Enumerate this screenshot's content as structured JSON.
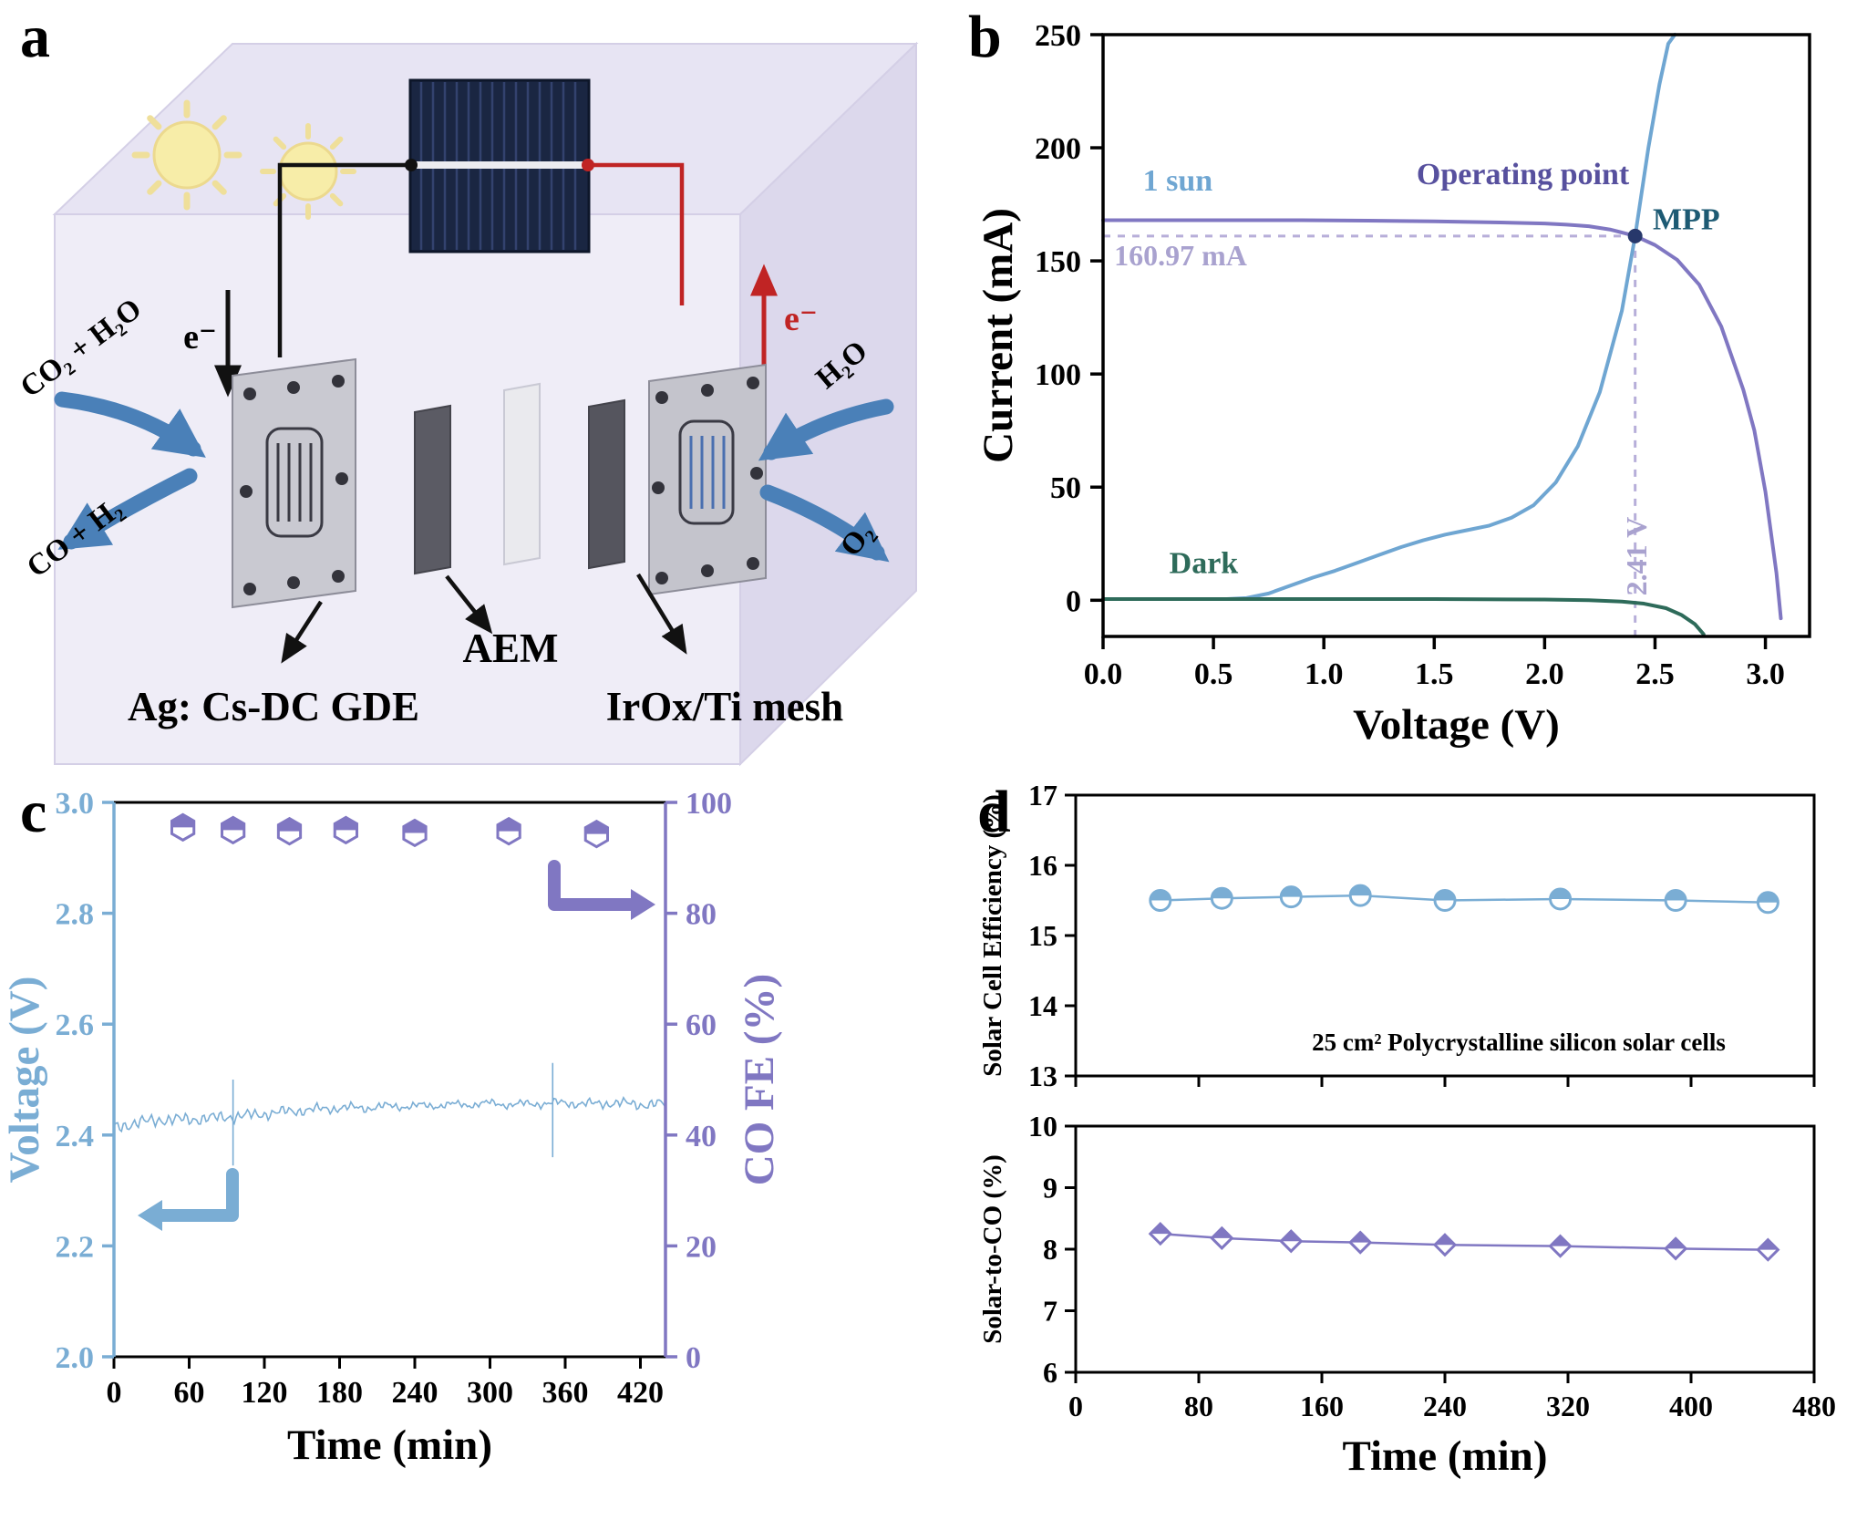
{
  "meta": {
    "panel_a_letter": "a",
    "panel_b_letter": "b",
    "panel_c_letter": "c",
    "panel_d_letter": "d"
  },
  "panel_a": {
    "labels": {
      "electron_left": "e⁻",
      "electron_right": "e⁻",
      "co2_in": "CO₂ + H₂O",
      "co_out": "CO + H₂",
      "h2o_in": "H₂O",
      "o2_out": "O₂",
      "aem": "AEM",
      "cathode": "Ag: Cs-DC GDE",
      "anode": "IrOx/Ti mesh"
    },
    "colors": {
      "wire_negative": "#111111",
      "wire_positive": "#c02424",
      "flow_arrow": "#4a80b8"
    }
  },
  "chart_data": [
    {
      "id": "b",
      "type": "line",
      "title": "",
      "xlabel": "Voltage (V)",
      "ylabel": "Current (mA)",
      "xlim": [
        0,
        3.2
      ],
      "ylim": [
        -16,
        250
      ],
      "xticks": [
        0,
        0.5,
        1,
        1.5,
        2,
        2.5,
        3
      ],
      "xtick_labels": [
        "0.0",
        "0.5",
        "1.0",
        "1.5",
        "2.0",
        "2.5",
        "3.0"
      ],
      "yticks": [
        0,
        50,
        100,
        150,
        200,
        250
      ],
      "ytick_labels": [
        "0",
        "50",
        "100",
        "150",
        "200",
        "250"
      ],
      "grid": false,
      "guide_color": "#b7aed9",
      "mpp": {
        "x": 2.41,
        "y": 160.97,
        "dot_color": "#27386b"
      },
      "annotations": [
        {
          "text": "1 sun",
          "x": 0.18,
          "y": 181,
          "color": "#6fa6d2",
          "size": 34,
          "anchor": "start"
        },
        {
          "text": "Operating point",
          "x": 1.42,
          "y": 184,
          "color": "#57509e",
          "size": 34,
          "anchor": "start"
        },
        {
          "text": "MPP",
          "x": 2.49,
          "y": 164,
          "color": "#1d5a73",
          "size": 34,
          "anchor": "start"
        },
        {
          "text": "160.97 mA",
          "x": 0.05,
          "y": 148,
          "color": "#a9a2cf",
          "size": 32,
          "anchor": "start"
        },
        {
          "text": "2.41 V",
          "x": 2.46,
          "y": 2,
          "color": "#a9a2cf",
          "size": 32,
          "anchor": "start",
          "rotate": -90
        },
        {
          "text": "Dark",
          "x": 0.3,
          "y": 12,
          "color": "#2e6b5a",
          "size": 34,
          "anchor": "start"
        }
      ],
      "series": [
        {
          "name": "solar-cell-1-sun",
          "color": "#8077c2",
          "width": 4,
          "x": [
            0,
            0.3,
            0.6,
            0.9,
            1.2,
            1.5,
            1.8,
            2.0,
            2.1,
            2.2,
            2.3,
            2.41,
            2.5,
            2.6,
            2.7,
            2.8,
            2.9,
            2.95,
            3.0,
            3.05,
            3.07
          ],
          "y": [
            168,
            168,
            168,
            168,
            167.8,
            167.5,
            167,
            166.5,
            166,
            165.3,
            163.8,
            161,
            157,
            150.5,
            139.5,
            121,
            93,
            75,
            48,
            12,
            -8
          ]
        },
        {
          "name": "electrolyzer-load",
          "color": "#6fa6d2",
          "width": 4,
          "x": [
            0,
            0.55,
            0.65,
            0.75,
            0.85,
            0.95,
            1.05,
            1.15,
            1.25,
            1.35,
            1.45,
            1.55,
            1.65,
            1.75,
            1.85,
            1.95,
            2.05,
            2.15,
            2.25,
            2.35,
            2.41,
            2.47,
            2.52,
            2.56,
            2.59
          ],
          "y": [
            0.5,
            0.5,
            1,
            3,
            6.5,
            10,
            13,
            16.5,
            20,
            23.5,
            26.5,
            29,
            31,
            33,
            36.5,
            42,
            52,
            68,
            92,
            128,
            161,
            200,
            228,
            246,
            256
          ]
        },
        {
          "name": "dark",
          "color": "#2e6b5a",
          "width": 4,
          "x": [
            0,
            0.5,
            1.0,
            1.5,
            2.0,
            2.2,
            2.35,
            2.45,
            2.55,
            2.62,
            2.68,
            2.72
          ],
          "y": [
            0.5,
            0.5,
            0.5,
            0.5,
            0.3,
            0,
            -0.6,
            -1.5,
            -3.5,
            -6.5,
            -10.5,
            -15
          ]
        }
      ]
    },
    {
      "id": "c",
      "type": "line+scatter",
      "xlabel": "Time (min)",
      "ylabel_left": "Voltage (V)",
      "ylabel_right": "CO FE (%)",
      "xlim": [
        0,
        440
      ],
      "ylim_left": [
        2.0,
        3.0
      ],
      "ylim_right": [
        0,
        100
      ],
      "xticks": [
        0,
        60,
        120,
        180,
        240,
        300,
        360,
        420
      ],
      "xtick_labels": [
        "0",
        "60",
        "120",
        "180",
        "240",
        "300",
        "360",
        "420"
      ],
      "yticks_left": [
        2.0,
        2.2,
        2.4,
        2.6,
        2.8,
        3.0
      ],
      "ytick_labels_left": [
        "2.0",
        "2.2",
        "2.4",
        "2.6",
        "2.8",
        "3.0"
      ],
      "yticks_right": [
        0,
        20,
        40,
        60,
        80,
        100
      ],
      "ytick_labels_right": [
        "0",
        "20",
        "40",
        "60",
        "80",
        "100"
      ],
      "left_color": "#7aadd4",
      "right_color": "#8077c2",
      "voltage_trace": {
        "color": "#7aadd4",
        "noise_amplitude": 0.005,
        "anchors": [
          [
            0,
            2.413
          ],
          [
            20,
            2.423
          ],
          [
            40,
            2.428
          ],
          [
            60,
            2.428
          ],
          [
            80,
            2.431
          ],
          [
            100,
            2.434
          ],
          [
            120,
            2.438
          ],
          [
            140,
            2.443
          ],
          [
            160,
            2.446
          ],
          [
            180,
            2.449
          ],
          [
            200,
            2.449
          ],
          [
            220,
            2.452
          ],
          [
            240,
            2.452
          ],
          [
            260,
            2.454
          ],
          [
            280,
            2.455
          ],
          [
            300,
            2.457
          ],
          [
            320,
            2.455
          ],
          [
            340,
            2.457
          ],
          [
            360,
            2.458
          ],
          [
            380,
            2.456
          ],
          [
            400,
            2.458
          ],
          [
            420,
            2.455
          ],
          [
            440,
            2.456
          ]
        ],
        "spikes": [
          {
            "x": 95,
            "y1": 2.345,
            "y2": 2.5
          },
          {
            "x": 350,
            "y1": 2.36,
            "y2": 2.53
          }
        ]
      },
      "co_fe_points": {
        "color": "#8077c2",
        "x": [
          55,
          95,
          140,
          185,
          240,
          315,
          385
        ],
        "y": [
          95.5,
          95,
          94.8,
          95,
          94.5,
          94.8,
          94.3
        ]
      }
    },
    {
      "id": "d_top",
      "type": "line+scatter",
      "ylabel": "Solar Cell Efficiency (%)",
      "ylim": [
        13,
        17
      ],
      "yticks": [
        13,
        14,
        15,
        16,
        17
      ],
      "ytick_labels": [
        "13",
        "14",
        "15",
        "16",
        "17"
      ],
      "xlim": [
        0,
        480
      ],
      "xticks": [
        0,
        80,
        160,
        240,
        320,
        400,
        480
      ],
      "xtick_labels": [
        "0",
        "80",
        "160",
        "240",
        "320",
        "400",
        "480"
      ],
      "marker": "circle",
      "annotation": "25 cm² Polycrystalline silicon solar cells",
      "series": {
        "color": "#7aadd4",
        "x": [
          55,
          95,
          140,
          185,
          240,
          315,
          390,
          450
        ],
        "y": [
          15.5,
          15.53,
          15.55,
          15.57,
          15.5,
          15.52,
          15.5,
          15.47
        ]
      }
    },
    {
      "id": "d_bottom",
      "type": "line+scatter",
      "ylabel": "Solar-to-CO (%)",
      "xlabel": "Time (min)",
      "ylim": [
        6,
        10
      ],
      "yticks": [
        6,
        7,
        8,
        9,
        10
      ],
      "ytick_labels": [
        "6",
        "7",
        "8",
        "9",
        "10"
      ],
      "xlim": [
        0,
        480
      ],
      "xticks": [
        0,
        80,
        160,
        240,
        320,
        400,
        480
      ],
      "xtick_labels": [
        "0",
        "80",
        "160",
        "240",
        "320",
        "400",
        "480"
      ],
      "marker": "diamond",
      "series": {
        "color": "#8077c2",
        "x": [
          55,
          95,
          140,
          185,
          240,
          315,
          390,
          450
        ],
        "y": [
          8.25,
          8.18,
          8.13,
          8.11,
          8.07,
          8.05,
          8.01,
          7.99
        ]
      }
    }
  ]
}
